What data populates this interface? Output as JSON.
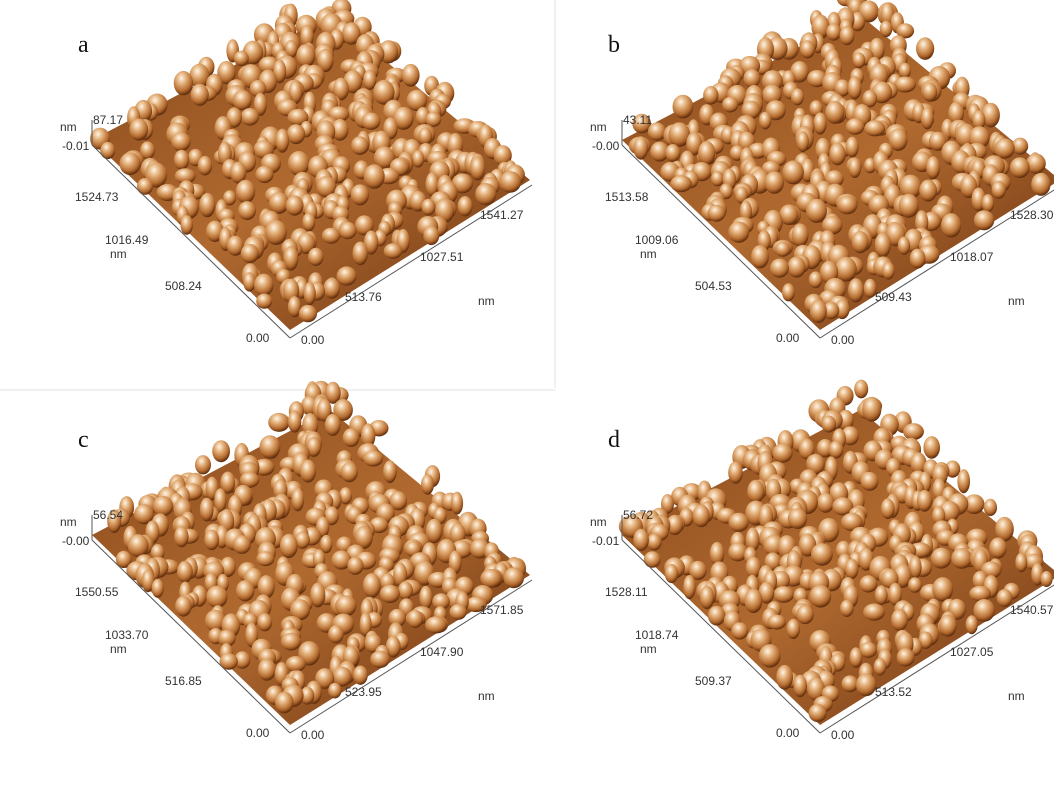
{
  "panels": [
    {
      "label": "a",
      "z_unit": "nm",
      "z_max": "87.17",
      "z_min": "-0.01",
      "y_ticks": [
        "1524.73",
        "1016.49",
        "508.24",
        "0.00"
      ],
      "y_unit": "nm",
      "x_ticks": [
        "0.00",
        "513.76",
        "1027.51",
        "1541.27"
      ],
      "x_unit": "nm"
    },
    {
      "label": "b",
      "z_unit": "nm",
      "z_max": "43.11",
      "z_min": "-0.00",
      "y_ticks": [
        "1513.58",
        "1009.06",
        "504.53",
        "0.00"
      ],
      "y_unit": "nm",
      "x_ticks": [
        "0.00",
        "509.43",
        "1018.07",
        "1528.30"
      ],
      "x_unit": "nm"
    },
    {
      "label": "c",
      "z_unit": "nm",
      "z_max": "56.54",
      "z_min": "-0.00",
      "y_ticks": [
        "1550.55",
        "1033.70",
        "516.85",
        "0.00"
      ],
      "y_unit": "nm",
      "x_ticks": [
        "0.00",
        "523.95",
        "1047.90",
        "1571.85"
      ],
      "x_unit": "nm"
    },
    {
      "label": "d",
      "z_unit": "nm",
      "z_max": "56.72",
      "z_min": "-0.01",
      "y_ticks": [
        "1528.11",
        "1018.74",
        "509.37",
        "0.00"
      ],
      "y_unit": "nm",
      "x_ticks": [
        "0.00",
        "513.52",
        "1027.05",
        "1540.57"
      ],
      "x_unit": "nm"
    }
  ]
}
